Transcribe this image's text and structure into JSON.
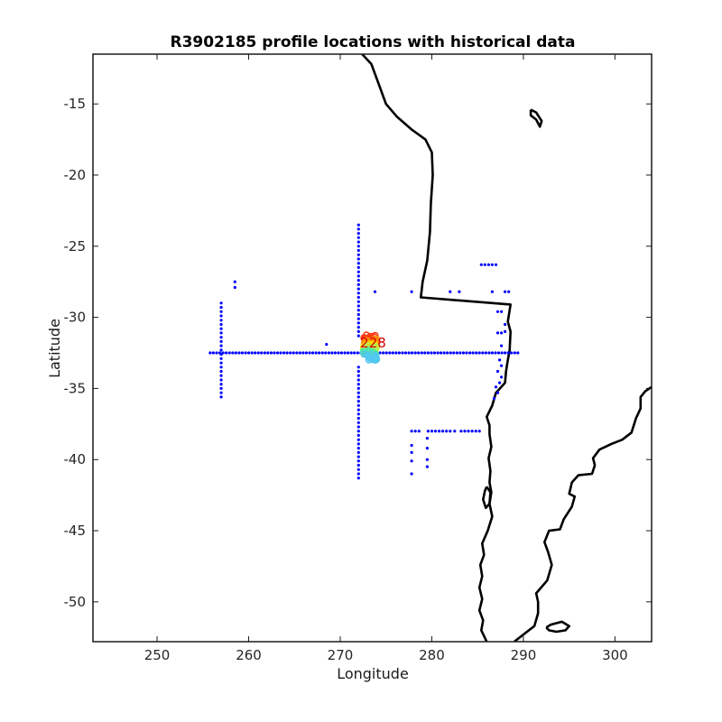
{
  "chart_data": {
    "type": "scatter",
    "title": "R3902185 profile locations with historical data",
    "xlabel": "Longitude",
    "ylabel": "Latitude",
    "xlim": [
      243,
      304
    ],
    "ylim": [
      -52.8,
      -11.5
    ],
    "xticks": [
      250,
      260,
      270,
      280,
      290,
      300
    ],
    "yticks": [
      -15,
      -20,
      -25,
      -30,
      -35,
      -40,
      -45,
      -50
    ],
    "grid": false,
    "annotation": {
      "text": "228",
      "x": 273.6,
      "y": -31.8,
      "color": "#d40000"
    },
    "historical_color": "#0000ff",
    "historical_points": {
      "zonal_line": {
        "lat": -32.5,
        "lon_from": 255.8,
        "lon_to": 289.4,
        "step": 0.35
      },
      "meridional_line_272": {
        "lon": 272,
        "segments": [
          [
            -23.5,
            -31.5,
            0.3
          ],
          [
            -33.5,
            -41.5,
            0.3
          ]
        ]
      },
      "meridional_line_257": {
        "lon": 257,
        "lat_from": -29,
        "lat_to": -35.8,
        "step": 0.3
      },
      "points": [
        [
          258.5,
          -27.5
        ],
        [
          258.5,
          -27.9
        ],
        [
          268.5,
          -31.9
        ],
        [
          273.8,
          -28.2
        ],
        [
          277.8,
          -28.2
        ],
        [
          282.0,
          -28.2
        ],
        [
          283.0,
          -28.2
        ],
        [
          286.6,
          -28.2
        ],
        [
          288.0,
          -28.2
        ],
        [
          288.4,
          -28.2
        ],
        [
          285.4,
          -26.3
        ],
        [
          285.8,
          -26.3
        ],
        [
          286.2,
          -26.3
        ],
        [
          286.6,
          -26.3
        ],
        [
          287.0,
          -26.3
        ],
        [
          287.2,
          -29.6
        ],
        [
          287.6,
          -29.6
        ],
        [
          288.0,
          -30.5
        ],
        [
          288.0,
          -31.0
        ],
        [
          287.2,
          -31.1
        ],
        [
          287.6,
          -31.1
        ],
        [
          287.6,
          -32.0
        ],
        [
          287.4,
          -33.0
        ],
        [
          287.6,
          -33.4
        ],
        [
          287.2,
          -33.8
        ],
        [
          287.6,
          -34.2
        ],
        [
          287.4,
          -34.6
        ],
        [
          287.0,
          -34.9
        ],
        [
          287.2,
          -35.3
        ],
        [
          286.8,
          -35.7
        ],
        [
          277.8,
          -38.0
        ],
        [
          278.2,
          -38.0
        ],
        [
          278.6,
          -38.0
        ],
        [
          279.6,
          -38.0
        ],
        [
          280.0,
          -38.0
        ],
        [
          280.4,
          -38.0
        ],
        [
          280.8,
          -38.0
        ],
        [
          281.2,
          -38.0
        ],
        [
          281.6,
          -38.0
        ],
        [
          282.0,
          -38.0
        ],
        [
          282.5,
          -38.0
        ],
        [
          283.2,
          -38.0
        ],
        [
          283.6,
          -38.0
        ],
        [
          284.0,
          -38.0
        ],
        [
          284.4,
          -38.0
        ],
        [
          284.8,
          -38.0
        ],
        [
          285.2,
          -38.0
        ],
        [
          277.8,
          -39.0
        ],
        [
          277.8,
          -39.5
        ],
        [
          277.8,
          -40.1
        ],
        [
          277.8,
          -41.0
        ],
        [
          279.5,
          -38.5
        ],
        [
          279.5,
          -39.2
        ],
        [
          279.5,
          -40.0
        ],
        [
          279.5,
          -40.5
        ]
      ]
    },
    "float_profiles": {
      "colormap": [
        "#ff3c14",
        "#ff8c00",
        "#ffd700",
        "#b4f050",
        "#50e6a0",
        "#50c8f0"
      ],
      "lon_range": [
        272.2,
        274.3
      ],
      "lat_range": [
        -31.2,
        -33.1
      ]
    },
    "coastlines": {
      "south_america": [
        [
          272.4,
          -11.5
        ],
        [
          273.4,
          -12.2
        ],
        [
          274.2,
          -13.6
        ],
        [
          275.0,
          -15.0
        ],
        [
          276.2,
          -15.9
        ],
        [
          277.8,
          -16.8
        ],
        [
          279.3,
          -17.5
        ],
        [
          280.0,
          -18.4
        ],
        [
          280.1,
          -20.0
        ],
        [
          279.9,
          -22.0
        ],
        [
          279.8,
          -24.0
        ],
        [
          279.5,
          -26.0
        ],
        [
          279.0,
          -27.5
        ],
        [
          278.8,
          -28.6
        ],
        [
          288.6,
          -29.1
        ],
        [
          288.3,
          -30.3
        ],
        [
          288.6,
          -31.0
        ],
        [
          288.5,
          -32.3
        ],
        [
          288.3,
          -33.0
        ],
        [
          288.1,
          -33.8
        ],
        [
          288.0,
          -34.6
        ],
        [
          287.0,
          -35.3
        ],
        [
          286.6,
          -36.2
        ],
        [
          286.0,
          -37.0
        ],
        [
          286.3,
          -37.6
        ],
        [
          286.3,
          -38.2
        ],
        [
          286.5,
          -39.1
        ],
        [
          286.2,
          -39.9
        ],
        [
          286.4,
          -40.8
        ],
        [
          286.3,
          -41.6
        ],
        [
          286.5,
          -42.3
        ],
        [
          286.3,
          -43.1
        ],
        [
          286.6,
          -44.0
        ],
        [
          286.1,
          -45.0
        ],
        [
          285.5,
          -45.9
        ],
        [
          285.7,
          -46.7
        ],
        [
          285.3,
          -47.4
        ],
        [
          285.5,
          -48.2
        ],
        [
          285.2,
          -49.0
        ],
        [
          285.5,
          -49.8
        ],
        [
          285.2,
          -50.6
        ],
        [
          285.6,
          -51.3
        ],
        [
          285.4,
          -52.0
        ],
        [
          286.0,
          -52.8
        ]
      ],
      "atlantic_coast": [
        [
          289.0,
          -52.8
        ],
        [
          290.0,
          -52.3
        ],
        [
          291.2,
          -51.7
        ],
        [
          291.6,
          -50.8
        ],
        [
          291.6,
          -50.0
        ],
        [
          291.4,
          -49.4
        ],
        [
          292.6,
          -48.5
        ],
        [
          293.1,
          -47.4
        ],
        [
          292.7,
          -46.5
        ],
        [
          292.3,
          -45.8
        ],
        [
          292.8,
          -45.0
        ],
        [
          294.0,
          -44.9
        ],
        [
          294.4,
          -44.2
        ],
        [
          295.3,
          -43.3
        ],
        [
          295.6,
          -42.6
        ],
        [
          295.0,
          -42.4
        ],
        [
          295.3,
          -41.6
        ],
        [
          296.0,
          -41.1
        ],
        [
          297.5,
          -41.0
        ],
        [
          297.8,
          -40.4
        ],
        [
          297.6,
          -39.9
        ],
        [
          298.3,
          -39.3
        ],
        [
          299.6,
          -38.9
        ],
        [
          300.8,
          -38.6
        ],
        [
          301.8,
          -38.1
        ],
        [
          302.3,
          -37.1
        ],
        [
          302.8,
          -36.4
        ],
        [
          302.8,
          -35.6
        ],
        [
          303.3,
          -35.2
        ],
        [
          304.0,
          -34.9
        ]
      ],
      "tierra_del_fuego": [
        [
          292.5,
          -51.8
        ],
        [
          293.0,
          -51.6
        ],
        [
          294.2,
          -51.4
        ],
        [
          295.0,
          -51.7
        ],
        [
          294.6,
          -52.0
        ],
        [
          293.6,
          -52.1
        ],
        [
          292.8,
          -52.0
        ],
        [
          292.5,
          -51.8
        ]
      ],
      "titicaca": [
        [
          290.8,
          -15.4
        ],
        [
          291.4,
          -15.6
        ],
        [
          292.0,
          -16.2
        ],
        [
          291.8,
          -16.6
        ],
        [
          291.4,
          -16.1
        ],
        [
          290.8,
          -15.8
        ],
        [
          290.8,
          -15.4
        ]
      ],
      "chiloe": [
        [
          286.0,
          -41.9
        ],
        [
          286.4,
          -42.3
        ],
        [
          286.3,
          -43.1
        ],
        [
          285.9,
          -43.4
        ],
        [
          285.6,
          -42.8
        ],
        [
          285.8,
          -42.2
        ],
        [
          286.0,
          -41.9
        ]
      ]
    }
  }
}
